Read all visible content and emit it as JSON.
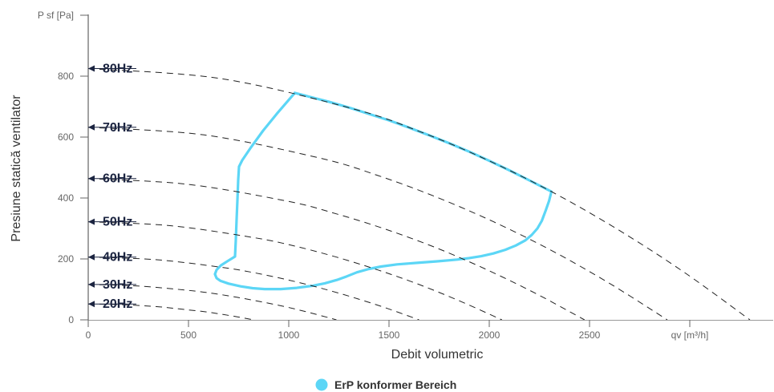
{
  "chart_data": {
    "type": "line",
    "xlabel": "Debit volumetric",
    "ylabel": "Presiune statică ventilator",
    "xlim": [
      0,
      3420
    ],
    "ylim": [
      0,
      1000
    ],
    "x_ticks": [
      {
        "value": 0,
        "label": "0"
      },
      {
        "value": 500,
        "label": "500"
      },
      {
        "value": 1000,
        "label": "1000"
      },
      {
        "value": 1500,
        "label": "1500"
      },
      {
        "value": 2000,
        "label": "2000"
      },
      {
        "value": 2500,
        "label": "2500"
      },
      {
        "value": 3000,
        "label": "qv [m³/h]"
      }
    ],
    "y_ticks": [
      {
        "value": 0,
        "label": "0"
      },
      {
        "value": 200,
        "label": "200"
      },
      {
        "value": 400,
        "label": "400"
      },
      {
        "value": 600,
        "label": "600"
      },
      {
        "value": 800,
        "label": "800"
      },
      {
        "value": 1000,
        "label": "P sf [Pa]"
      }
    ],
    "grid": false,
    "legend": "bottom-center",
    "colors": {
      "region": "#5CD6F6",
      "curves": "#222222",
      "curve_labels": "#1C2541"
    },
    "series": [
      {
        "name": "80Hz",
        "points": [
          [
            0,
            825
          ],
          [
            660,
            792
          ],
          [
            1320,
            693
          ],
          [
            1650,
            619
          ],
          [
            1980,
            528
          ],
          [
            2310,
            421
          ],
          [
            2640,
            297
          ],
          [
            2970,
            157
          ],
          [
            3300,
            0
          ]
        ]
      },
      {
        "name": "70Hz",
        "points": [
          [
            0,
            632
          ],
          [
            578,
            607
          ],
          [
            1155,
            531
          ],
          [
            1444,
            474
          ],
          [
            1733,
            404
          ],
          [
            2021,
            322
          ],
          [
            2310,
            228
          ],
          [
            2599,
            120
          ],
          [
            2888,
            0
          ]
        ]
      },
      {
        "name": "60Hz",
        "points": [
          [
            0,
            464
          ],
          [
            495,
            445
          ],
          [
            990,
            390
          ],
          [
            1238,
            348
          ],
          [
            1485,
            297
          ],
          [
            1733,
            237
          ],
          [
            1980,
            167
          ],
          [
            2228,
            88
          ],
          [
            2475,
            0
          ]
        ]
      },
      {
        "name": "50Hz",
        "points": [
          [
            0,
            322
          ],
          [
            413,
            309
          ],
          [
            825,
            270
          ],
          [
            1031,
            242
          ],
          [
            1238,
            206
          ],
          [
            1444,
            164
          ],
          [
            1650,
            116
          ],
          [
            1856,
            61
          ],
          [
            2063,
            0
          ]
        ]
      },
      {
        "name": "40Hz",
        "points": [
          [
            0,
            206
          ],
          [
            330,
            198
          ],
          [
            660,
            173
          ],
          [
            825,
            155
          ],
          [
            990,
            132
          ],
          [
            1155,
            105
          ],
          [
            1320,
            74
          ],
          [
            1485,
            39
          ],
          [
            1650,
            0
          ]
        ]
      },
      {
        "name": "30Hz",
        "points": [
          [
            0,
            116
          ],
          [
            248,
            111
          ],
          [
            495,
            97
          ],
          [
            619,
            87
          ],
          [
            743,
            74
          ],
          [
            866,
            59
          ],
          [
            990,
            42
          ],
          [
            1114,
            22
          ],
          [
            1238,
            0
          ]
        ]
      },
      {
        "name": "20Hz",
        "points": [
          [
            0,
            52
          ],
          [
            165,
            50
          ],
          [
            330,
            44
          ],
          [
            413,
            39
          ],
          [
            495,
            33
          ],
          [
            578,
            27
          ],
          [
            660,
            19
          ],
          [
            743,
            10
          ],
          [
            825,
            0
          ]
        ]
      }
    ],
    "region": {
      "name": "ErP konformer Bereich",
      "points": [
        [
          1030,
          745
        ],
        [
          1100,
          733
        ],
        [
          1200,
          716
        ],
        [
          1300,
          697
        ],
        [
          1400,
          676
        ],
        [
          1500,
          655
        ],
        [
          1600,
          631
        ],
        [
          1700,
          606
        ],
        [
          1800,
          580
        ],
        [
          1900,
          552
        ],
        [
          2000,
          522
        ],
        [
          2100,
          491
        ],
        [
          2200,
          458
        ],
        [
          2310,
          421
        ],
        [
          2298,
          390
        ],
        [
          2282,
          360
        ],
        [
          2262,
          325
        ],
        [
          2240,
          300
        ],
        [
          2212,
          279
        ],
        [
          2180,
          261
        ],
        [
          2132,
          244
        ],
        [
          2080,
          230
        ],
        [
          2020,
          218
        ],
        [
          1960,
          209
        ],
        [
          1900,
          203
        ],
        [
          1840,
          198
        ],
        [
          1740,
          192
        ],
        [
          1640,
          187
        ],
        [
          1540,
          182
        ],
        [
          1460,
          175
        ],
        [
          1400,
          167
        ],
        [
          1340,
          156
        ],
        [
          1290,
          143
        ],
        [
          1240,
          131
        ],
        [
          1180,
          120
        ],
        [
          1120,
          112
        ],
        [
          1040,
          105
        ],
        [
          960,
          101
        ],
        [
          880,
          101
        ],
        [
          820,
          104
        ],
        [
          760,
          110
        ],
        [
          700,
          119
        ],
        [
          660,
          128
        ],
        [
          640,
          137
        ],
        [
          632,
          150
        ],
        [
          640,
          164
        ],
        [
          662,
          179
        ],
        [
          695,
          193
        ],
        [
          732,
          208
        ],
        [
          736,
          262
        ],
        [
          740,
          330
        ],
        [
          744,
          392
        ],
        [
          748,
          460
        ],
        [
          752,
          503
        ],
        [
          768,
          524
        ],
        [
          808,
          563
        ],
        [
          872,
          621
        ],
        [
          940,
          676
        ],
        [
          1030,
          745
        ]
      ]
    }
  }
}
